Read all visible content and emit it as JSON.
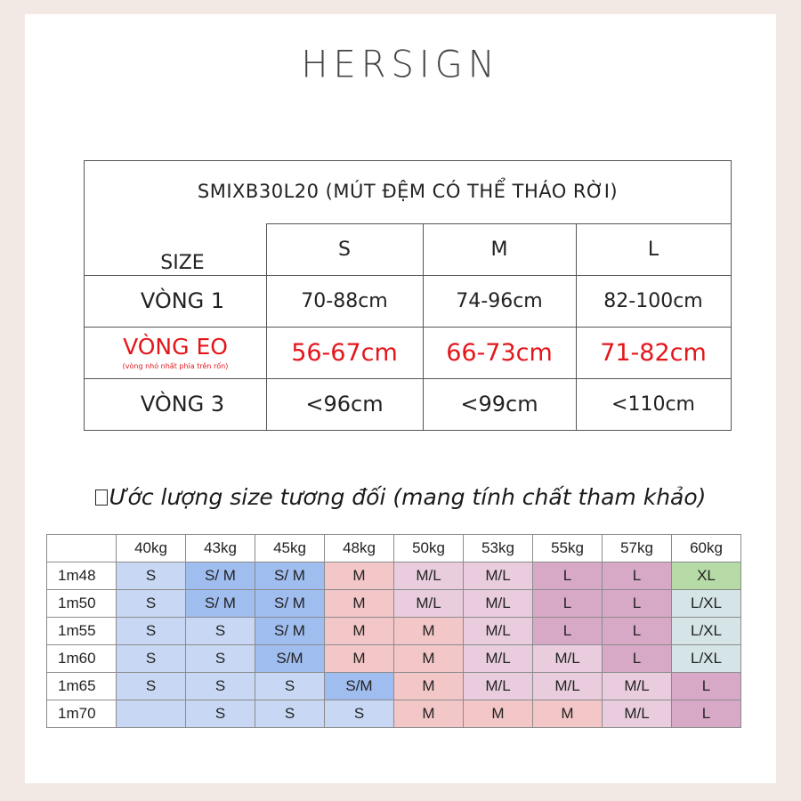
{
  "brand": "HERSIGN",
  "size_table": {
    "title": "SMIXB30L20 (MÚT ĐỆM CÓ THỂ THÁO RỜI)",
    "header": {
      "label": "SIZE",
      "s": "S",
      "m": "M",
      "l": "L"
    },
    "rows": [
      {
        "label": "VÒNG 1",
        "s": "70-88cm",
        "m": "74-96cm",
        "l": "82-100cm"
      },
      {
        "label": "VÒNG EO",
        "note": "(vòng nhỏ nhất phía trên rốn)",
        "s": "56-67cm",
        "m": "66-73cm",
        "l": "71-82cm"
      },
      {
        "label": "VÒNG 3",
        "s": "<96cm",
        "m": "<99cm",
        "l": "<110cm"
      }
    ]
  },
  "estimate": {
    "title": "Ước lượng size tương đối (mang tính chất tham khảo)",
    "weights": [
      "40kg",
      "43kg",
      "45kg",
      "48kg",
      "50kg",
      "53kg",
      "55kg",
      "57kg",
      "60kg"
    ],
    "rows": [
      {
        "height": "1m48",
        "cells": [
          {
            "v": "S",
            "c": "blue"
          },
          {
            "v": "S/ M",
            "c": "bluedk"
          },
          {
            "v": "S/ M",
            "c": "bluedk"
          },
          {
            "v": "M",
            "c": "pink"
          },
          {
            "v": "M/L",
            "c": "lilac"
          },
          {
            "v": "M/L",
            "c": "lilac"
          },
          {
            "v": "L",
            "c": "mauve"
          },
          {
            "v": "L",
            "c": "mauve"
          },
          {
            "v": "XL",
            "c": "green"
          }
        ]
      },
      {
        "height": "1m50",
        "cells": [
          {
            "v": "S",
            "c": "blue"
          },
          {
            "v": "S/ M",
            "c": "bluedk"
          },
          {
            "v": "S/ M",
            "c": "bluedk"
          },
          {
            "v": "M",
            "c": "pink"
          },
          {
            "v": "M/L",
            "c": "lilac"
          },
          {
            "v": "M/L",
            "c": "lilac"
          },
          {
            "v": "L",
            "c": "mauve"
          },
          {
            "v": "L",
            "c": "mauve"
          },
          {
            "v": "L/XL",
            "c": "teal"
          }
        ]
      },
      {
        "height": "1m55",
        "cells": [
          {
            "v": "S",
            "c": "blue"
          },
          {
            "v": "S",
            "c": "blue"
          },
          {
            "v": "S/ M",
            "c": "bluedk"
          },
          {
            "v": "M",
            "c": "pink"
          },
          {
            "v": "M",
            "c": "pink"
          },
          {
            "v": "M/L",
            "c": "lilac"
          },
          {
            "v": "L",
            "c": "mauve"
          },
          {
            "v": "L",
            "c": "mauve"
          },
          {
            "v": "L/XL",
            "c": "teal"
          }
        ]
      },
      {
        "height": "1m60",
        "cells": [
          {
            "v": "S",
            "c": "blue"
          },
          {
            "v": "S",
            "c": "blue"
          },
          {
            "v": "S/M",
            "c": "bluedk"
          },
          {
            "v": "M",
            "c": "pink"
          },
          {
            "v": "M",
            "c": "pink"
          },
          {
            "v": "M/L",
            "c": "lilac"
          },
          {
            "v": "M/L",
            "c": "lilac"
          },
          {
            "v": "L",
            "c": "mauve"
          },
          {
            "v": "L/XL",
            "c": "teal"
          }
        ]
      },
      {
        "height": "1m65",
        "cells": [
          {
            "v": "S",
            "c": "blue"
          },
          {
            "v": "S",
            "c": "blue"
          },
          {
            "v": "S",
            "c": "blue"
          },
          {
            "v": "S/M",
            "c": "bluedk"
          },
          {
            "v": "M",
            "c": "pink"
          },
          {
            "v": "M/L",
            "c": "lilac"
          },
          {
            "v": "M/L",
            "c": "lilac"
          },
          {
            "v": "M/L",
            "c": "lilac"
          },
          {
            "v": "L",
            "c": "mauve"
          }
        ]
      },
      {
        "height": "1m70",
        "cells": [
          {
            "v": "",
            "c": "blue"
          },
          {
            "v": "S",
            "c": "blue"
          },
          {
            "v": "S",
            "c": "blue"
          },
          {
            "v": "S",
            "c": "blue"
          },
          {
            "v": "M",
            "c": "pink"
          },
          {
            "v": "M",
            "c": "pink"
          },
          {
            "v": "M",
            "c": "pink"
          },
          {
            "v": "M/L",
            "c": "lilac"
          },
          {
            "v": "L",
            "c": "mauve"
          }
        ]
      }
    ]
  }
}
